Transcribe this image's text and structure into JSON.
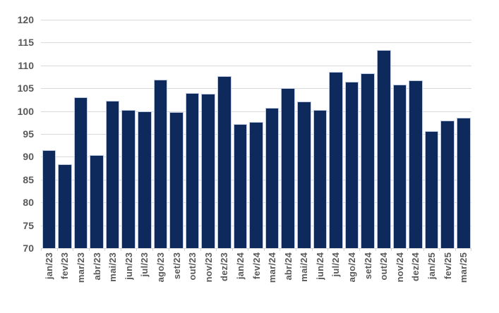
{
  "chart_data": {
    "type": "bar",
    "title": "",
    "xlabel": "",
    "ylabel": "",
    "categories": [
      "jan/23",
      "fev/23",
      "mar/23",
      "abr/23",
      "mai/23",
      "jun/23",
      "jul/23",
      "ago/23",
      "set/23",
      "out/23",
      "nov/23",
      "dez/23",
      "jan/24",
      "fev/24",
      "mar/24",
      "abr/24",
      "mai/24",
      "jun/24",
      "jul/24",
      "ago/24",
      "set/24",
      "out/24",
      "nov/24",
      "dez/24",
      "jan/25",
      "fev/25",
      "mar/25"
    ],
    "values": [
      91.5,
      88.3,
      103.0,
      90.4,
      102.3,
      100.3,
      100.0,
      106.9,
      99.8,
      104.0,
      103.8,
      107.7,
      97.2,
      97.7,
      100.7,
      105.0,
      102.1,
      100.2,
      108.6,
      106.5,
      108.3,
      113.4,
      105.8,
      106.7,
      95.7,
      97.9,
      98.5
    ],
    "ylim": [
      70,
      120
    ],
    "y_ticks": [
      120,
      115,
      110,
      105,
      100,
      95,
      90,
      85,
      80,
      75,
      70
    ],
    "grid": "horizontal",
    "legend": "none",
    "colors": {
      "bar_fill": "#0e2a5c",
      "bar_border": "#bcc9de",
      "gridline": "#d9d9d9",
      "axis_label": "#595959",
      "background": "#ffffff"
    }
  }
}
